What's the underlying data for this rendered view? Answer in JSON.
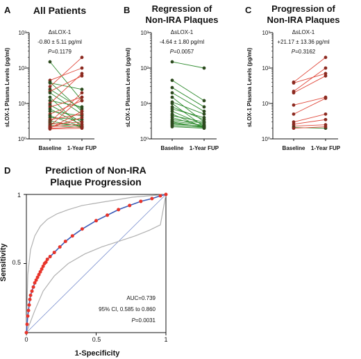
{
  "panels": [
    {
      "letter": "A",
      "title_lines": [
        "All Patients"
      ],
      "stat_lines": [
        "ΔsLOX-1",
        "-0.80 ± 5.11 pg/ml",
        "P=0.1179"
      ],
      "ylabel": "sLOX-1 Plasma Levels (pg/ml)",
      "y_ticks": [
        "10⁰",
        "10¹",
        "10²",
        "10³"
      ],
      "x_labels": [
        "Baseline",
        "1-Year FUP"
      ]
    },
    {
      "letter": "B",
      "title_lines": [
        "Regression of",
        "Non-IRA Plaques"
      ],
      "stat_lines": [
        "ΔsLOX-1",
        "-4.64 ± 1.80 pg/ml",
        "P=0.0057"
      ],
      "ylabel": "sLOX-1 Plasma Levels (pg/ml)",
      "y_ticks": [
        "10⁰",
        "10¹",
        "10²",
        "10³"
      ],
      "x_labels": [
        "Baseline",
        "1-Year FUP"
      ]
    },
    {
      "letter": "C",
      "title_lines": [
        "Progression of",
        "Non-IRA Plaques"
      ],
      "stat_lines": [
        "ΔsLOX-1",
        "+21.17 ± 13.36 pg/ml",
        "P=0.3162"
      ],
      "ylabel": "sLOX-1 Plasma Levels (pg/ml)",
      "y_ticks": [
        "10⁰",
        "10¹",
        "10²",
        "10³"
      ],
      "x_labels": [
        "Baseline",
        "1-Year FUP"
      ]
    }
  ],
  "roc": {
    "letter": "D",
    "title_lines": [
      "Prediction of Non-IRA",
      "Plaque Progression"
    ],
    "xlabel": "1-Specificity",
    "ylabel": "Sensitivity",
    "x_ticks": [
      "0",
      "0.5",
      "1"
    ],
    "y_ticks": [
      "0.5",
      "1"
    ],
    "auc_text": "AUC=0.739",
    "ci_text": "95% CI, 0.585 to 0.860",
    "p_text": "P=0.0031"
  },
  "colors": {
    "regression": "#2e8b2e",
    "progression": "#e0473a",
    "dot": "#2d4a1f",
    "dot_red": "#8b2a20",
    "roc_line": "#3b5bb8",
    "roc_marker": "#e8342a",
    "ci_band": "#b0b0b0"
  },
  "chart_data": [
    {
      "type": "line",
      "subtype": "paired-log",
      "title": "All Patients",
      "ylabel": "sLOX-1 Plasma Levels (pg/ml)",
      "yscale": "log",
      "ylim": [
        1,
        1000
      ],
      "categories": [
        "Baseline",
        "1-Year FUP"
      ],
      "pairs": [
        [
          150,
          12
        ],
        [
          45,
          100
        ],
        [
          40,
          6
        ],
        [
          38,
          25
        ],
        [
          30,
          200
        ],
        [
          25,
          7
        ],
        [
          22,
          60
        ],
        [
          20,
          5
        ],
        [
          15,
          2.1
        ],
        [
          12,
          8
        ],
        [
          10,
          70
        ],
        [
          9,
          3
        ],
        [
          8,
          15
        ],
        [
          7,
          2.5
        ],
        [
          6,
          4.5
        ],
        [
          5,
          12
        ],
        [
          4.5,
          2.2
        ],
        [
          4,
          3.5
        ],
        [
          3.5,
          5
        ],
        [
          3.2,
          2.2
        ],
        [
          3,
          20
        ],
        [
          2.8,
          2.3
        ],
        [
          2.6,
          3
        ],
        [
          2.4,
          2.1
        ],
        [
          2.3,
          15
        ],
        [
          2.2,
          2.6
        ],
        [
          2.1,
          4
        ],
        [
          2,
          2.2
        ],
        [
          2,
          6
        ],
        [
          1.9,
          2
        ]
      ]
    },
    {
      "type": "line",
      "subtype": "paired-log",
      "title": "Regression of Non-IRA Plaques",
      "ylabel": "sLOX-1 Plasma Levels (pg/ml)",
      "yscale": "log",
      "ylim": [
        1,
        1000
      ],
      "categories": [
        "Baseline",
        "1-Year FUP"
      ],
      "pairs": [
        [
          150,
          100
        ],
        [
          45,
          12
        ],
        [
          28,
          8
        ],
        [
          20,
          6
        ],
        [
          15,
          3
        ],
        [
          11,
          5
        ],
        [
          10,
          2.2
        ],
        [
          8,
          3.5
        ],
        [
          7,
          4
        ],
        [
          6,
          2.5
        ],
        [
          5,
          2.1
        ],
        [
          4.5,
          3
        ],
        [
          4,
          2.2
        ],
        [
          3.5,
          2.8
        ],
        [
          3.2,
          2.4
        ],
        [
          3,
          2.1
        ],
        [
          2.8,
          2.2
        ],
        [
          2.6,
          2.3
        ],
        [
          2.4,
          2.1
        ],
        [
          2.2,
          2
        ]
      ]
    },
    {
      "type": "line",
      "subtype": "paired-log",
      "title": "Progression of Non-IRA Plaques",
      "ylabel": "sLOX-1 Plasma Levels (pg/ml)",
      "yscale": "log",
      "ylim": [
        1,
        1000
      ],
      "categories": [
        "Baseline",
        "1-Year FUP"
      ],
      "pairs": [
        [
          40,
          200
        ],
        [
          38,
          70
        ],
        [
          22,
          100
        ],
        [
          20,
          60
        ],
        [
          9,
          15
        ],
        [
          5,
          14
        ],
        [
          3,
          5
        ],
        [
          2.6,
          3.5
        ],
        [
          2.3,
          2.5
        ],
        [
          2.1,
          2
        ],
        [
          2,
          2.2
        ]
      ]
    },
    {
      "type": "line",
      "subtype": "roc",
      "title": "Prediction of Non-IRA Plaque Progression",
      "xlabel": "1-Specificity",
      "ylabel": "Sensitivity",
      "xlim": [
        0,
        1
      ],
      "ylim": [
        0,
        1
      ],
      "auc": 0.739,
      "ci": [
        0.585,
        0.86
      ],
      "p": 0.0031,
      "roc_x": [
        0,
        0.005,
        0.01,
        0.015,
        0.02,
        0.025,
        0.03,
        0.04,
        0.05,
        0.06,
        0.07,
        0.08,
        0.09,
        0.1,
        0.11,
        0.12,
        0.13,
        0.14,
        0.15,
        0.17,
        0.2,
        0.24,
        0.28,
        0.33,
        0.4,
        0.5,
        0.58,
        0.66,
        0.74,
        0.82,
        0.9,
        0.96,
        1
      ],
      "roc_y": [
        0,
        0.06,
        0.12,
        0.16,
        0.2,
        0.24,
        0.27,
        0.3,
        0.33,
        0.36,
        0.38,
        0.4,
        0.42,
        0.44,
        0.46,
        0.48,
        0.5,
        0.51,
        0.53,
        0.55,
        0.58,
        0.62,
        0.66,
        0.7,
        0.75,
        0.81,
        0.85,
        0.89,
        0.92,
        0.95,
        0.97,
        0.99,
        1
      ],
      "ci_upper_x": [
        0,
        0.01,
        0.03,
        0.06,
        0.1,
        0.15,
        0.22,
        0.3,
        0.4,
        0.52,
        0.64,
        0.76,
        0.88,
        1
      ],
      "ci_upper_y": [
        0,
        0.42,
        0.6,
        0.7,
        0.77,
        0.82,
        0.86,
        0.89,
        0.92,
        0.94,
        0.96,
        0.98,
        0.99,
        1
      ],
      "ci_lower_x": [
        0,
        0.06,
        0.12,
        0.2,
        0.3,
        0.42,
        0.54,
        0.66,
        0.78,
        0.88,
        0.96,
        1
      ],
      "ci_lower_y": [
        0,
        0.16,
        0.3,
        0.41,
        0.5,
        0.57,
        0.62,
        0.66,
        0.7,
        0.74,
        0.78,
        1
      ]
    }
  ]
}
